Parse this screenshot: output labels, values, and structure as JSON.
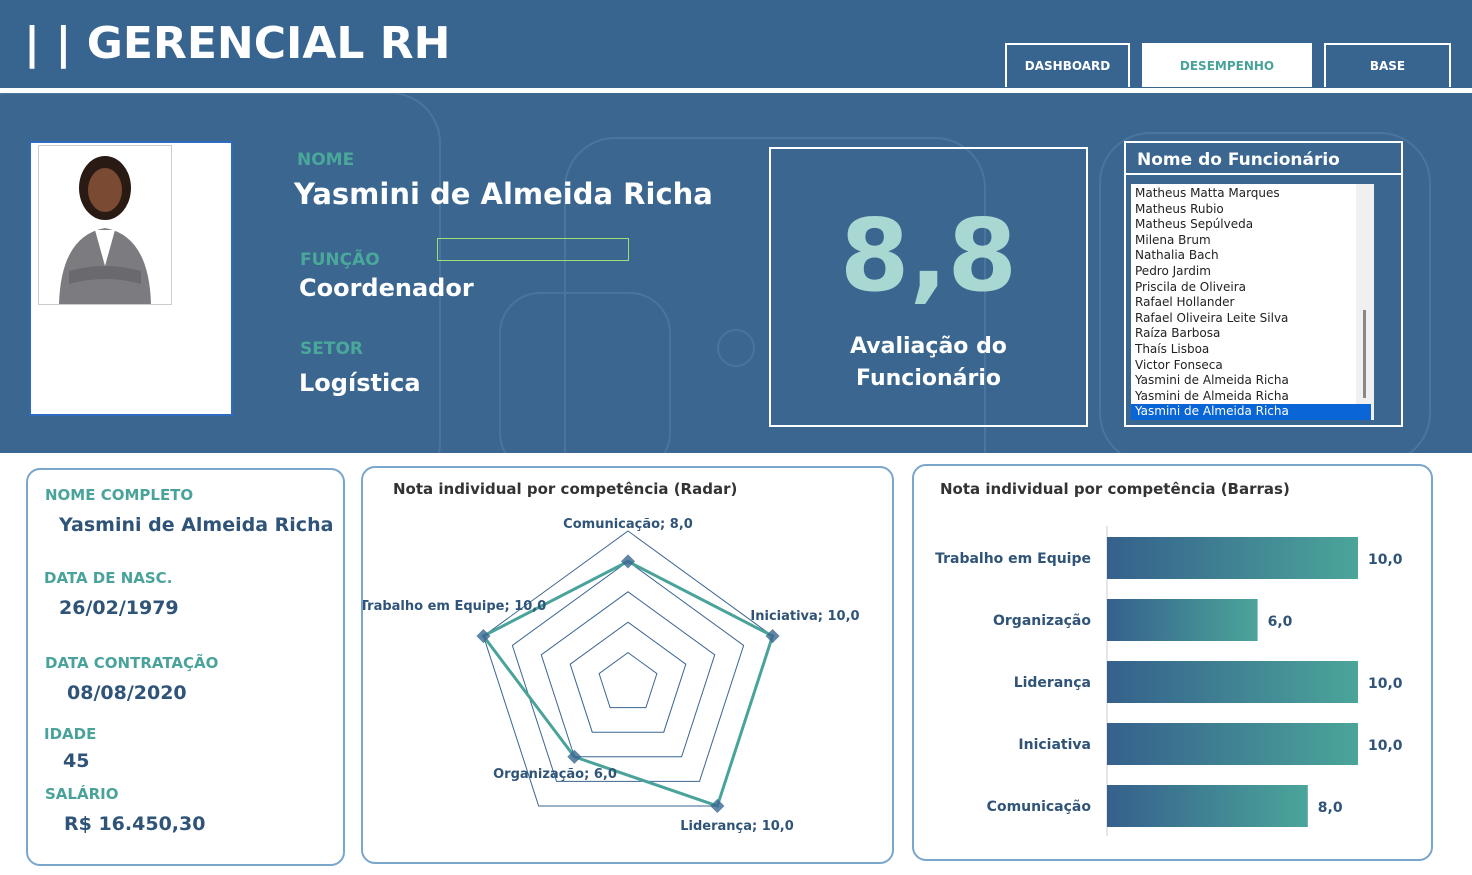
{
  "header": {
    "title": "GERENCIAL RH",
    "tabs": [
      "DASHBOARD",
      "DESEMPENHO",
      "BASE"
    ],
    "active_tab": 1
  },
  "profile": {
    "name_label": "NOME",
    "name": "Yasmini de Almeida Richa",
    "role_label": "FUNÇÃO",
    "role": "Coordenador",
    "sector_label": "SETOR",
    "sector": "Logística"
  },
  "score": {
    "value": "8,8",
    "label": "Avaliação do Funcionário"
  },
  "employee_list": {
    "title": "Nome do Funcionário",
    "selected": 14,
    "items": [
      "Matheus Matta Marques",
      "Matheus Rubio",
      "Matheus Sepúlveda",
      "Milena Brum",
      "Nathalia Bach",
      "Pedro Jardim",
      "Priscila de Oliveira",
      "Rafael Hollander",
      "Rafael Oliveira Leite Silva",
      "Raíza Barbosa",
      "Thaís Lisboa",
      "Victor Fonseca",
      "Yasmini de Almeida Richa",
      "Yasmini de Almeida Richa",
      "Yasmini de Almeida Richa"
    ]
  },
  "details": [
    {
      "label": "NOME COMPLETO",
      "value": "Yasmini de Almeida Richa"
    },
    {
      "label": "DATA DE NASC.",
      "value": "26/02/1979"
    },
    {
      "label": "DATA CONTRATAÇÃO",
      "value": "08/08/2020"
    },
    {
      "label": "IDADE",
      "value": "45"
    },
    {
      "label": "SALÁRIO",
      "value": "R$ 16.450,30"
    }
  ],
  "charts": [
    {
      "type": "radar",
      "title": "Nota individual por competência (Radar)",
      "values": [
        8,
        10,
        10,
        6,
        10
      ],
      "value_labels": [
        "Comunicação; 8,0",
        "Iniciativa; 10,0",
        "Liderança; 10,0",
        "Organização; 6,0",
        "Trabalho em Equipe; 10,0"
      ],
      "rlim": [
        0,
        10
      ],
      "rticks": [
        2,
        4,
        6,
        8,
        10
      ],
      "color": "#4aa39a",
      "grid_color": "#3a6690"
    },
    {
      "type": "bar",
      "orientation": "horizontal",
      "title": "Nota individual por competência (Barras)",
      "categories": [
        "Trabalho em Equipe",
        "Organização",
        "Liderança",
        "Iniciativa",
        "Comunicação"
      ],
      "values": [
        10,
        6,
        10,
        10,
        8
      ],
      "value_labels": [
        "10,0",
        "6,0",
        "10,0",
        "10,0",
        "8,0"
      ],
      "xlim": [
        0,
        10
      ],
      "colors": [
        "#35608c",
        "#4ba59a"
      ]
    }
  ]
}
